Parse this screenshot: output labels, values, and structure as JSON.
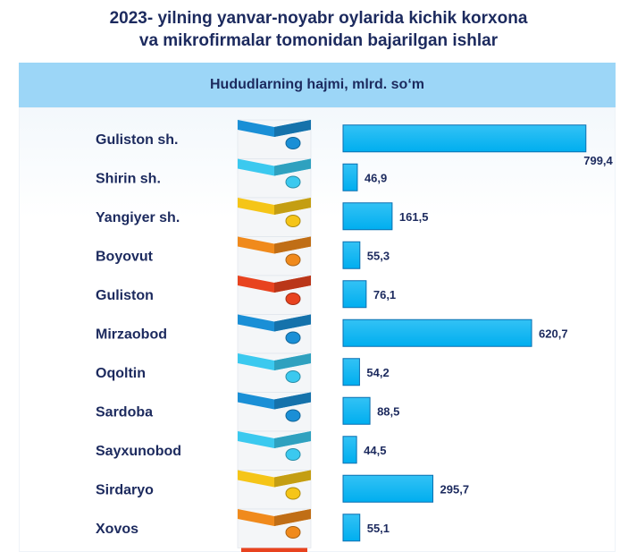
{
  "title_line1": "2023- yilning yanvar-noyabr oylarida kichik korxona",
  "title_line2": "va mikrofirmalar tomonidan bajarilgan ishlar",
  "subheader": "Hududlarning hajmi, mlrd. so‘m",
  "colors": {
    "bar": "#00aeef",
    "bar_edge": "#0a6fb0",
    "text": "#1c2a5e",
    "header_bg": "#9cd6f7",
    "tile_palette": [
      "#1a8fd6",
      "#3bc9ef",
      "#f5c518",
      "#f08a1c",
      "#e8431f"
    ]
  },
  "chart_data": {
    "type": "bar",
    "orientation": "horizontal",
    "categories": [
      "Guliston sh.",
      "Shirin sh.",
      "Yangiyer sh.",
      "Boyovut",
      "Guliston",
      "Mirzaobod",
      "Oqoltin",
      "Sardoba",
      "Sayxunobod",
      "Sirdaryo",
      "Xovos"
    ],
    "values": [
      799.4,
      46.9,
      161.5,
      55.3,
      76.1,
      620.7,
      54.2,
      88.5,
      44.5,
      295.7,
      55.1
    ],
    "value_labels": [
      "799,4",
      "46,9",
      "161,5",
      "55,3",
      "76,1",
      "620,7",
      "54,2",
      "88,5",
      "44,5",
      "295,7",
      "55,1"
    ],
    "tile_colors": [
      "#1a8fd6",
      "#3bc9ef",
      "#f5c518",
      "#f08a1c",
      "#e8431f",
      "#1a8fd6",
      "#3bc9ef",
      "#1a8fd6",
      "#3bc9ef",
      "#f5c518",
      "#f08a1c"
    ],
    "xlim": [
      0,
      800
    ],
    "grid": false,
    "legend": "none"
  }
}
